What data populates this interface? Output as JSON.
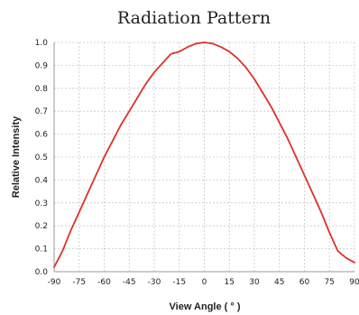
{
  "chart_data": {
    "type": "line",
    "title": "Radiation Pattern",
    "xlabel": "View Angle ( ° )",
    "ylabel": "Relative Intensity",
    "xlim": [
      -90,
      90
    ],
    "ylim": [
      0,
      1.0
    ],
    "x_ticks": [
      "-90",
      "-75",
      "-60",
      "-45",
      "-30",
      "-15",
      "0",
      "15",
      "30",
      "45",
      "60",
      "75",
      "90"
    ],
    "y_ticks": [
      "0.0",
      "0.1",
      "0.2",
      "0.3",
      "0.4",
      "0.5",
      "0.6",
      "0.7",
      "0.8",
      "0.9",
      "1.0"
    ],
    "grid": true,
    "line_color": "#e0302a",
    "series": [
      {
        "x": [
          -90,
          -85,
          -80,
          -75,
          -70,
          -65,
          -60,
          -55,
          -50,
          -45,
          -40,
          -35,
          -30,
          -25,
          -20,
          -15,
          -10,
          -5,
          0,
          5,
          10,
          15,
          20,
          25,
          30,
          35,
          40,
          45,
          50,
          55,
          60,
          65,
          70,
          75,
          80,
          85,
          90
        ],
        "y": [
          0.02,
          0.09,
          0.18,
          0.26,
          0.34,
          0.42,
          0.5,
          0.57,
          0.64,
          0.7,
          0.76,
          0.82,
          0.87,
          0.91,
          0.95,
          0.96,
          0.98,
          0.995,
          1.0,
          0.995,
          0.98,
          0.96,
          0.93,
          0.89,
          0.84,
          0.78,
          0.72,
          0.65,
          0.58,
          0.5,
          0.42,
          0.34,
          0.26,
          0.17,
          0.09,
          0.06,
          0.04
        ]
      }
    ]
  }
}
